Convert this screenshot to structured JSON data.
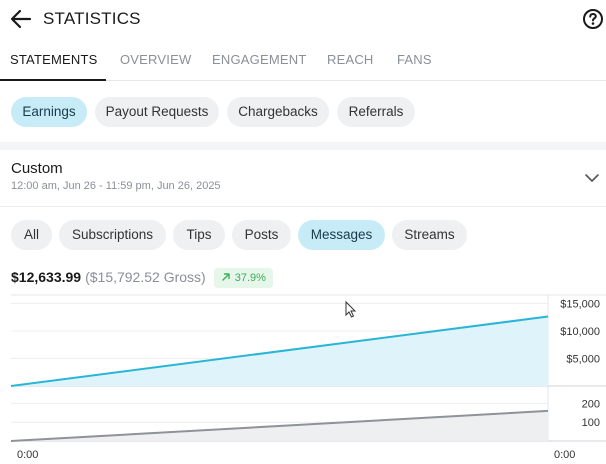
{
  "header": {
    "title": "STATISTICS",
    "back_icon": "arrow-left-icon",
    "help_icon": "question-circle-icon"
  },
  "tabs": [
    {
      "label": "STATEMENTS",
      "active": true
    },
    {
      "label": "OVERVIEW",
      "active": false
    },
    {
      "label": "ENGAGEMENT",
      "active": false
    },
    {
      "label": "REACH",
      "active": false
    },
    {
      "label": "FANS",
      "active": false
    }
  ],
  "statement_types": [
    {
      "label": "Earnings",
      "active": true
    },
    {
      "label": "Payout Requests",
      "active": false
    },
    {
      "label": "Chargebacks",
      "active": false
    },
    {
      "label": "Referrals",
      "active": false
    }
  ],
  "date_range": {
    "title": "Custom",
    "subtitle": "12:00 am, Jun 26 - 11:59 pm, Jun 26, 2025",
    "icon": "chevron-down-icon"
  },
  "filters": [
    {
      "label": "All",
      "active": false
    },
    {
      "label": "Subscriptions",
      "active": false
    },
    {
      "label": "Tips",
      "active": false
    },
    {
      "label": "Posts",
      "active": false
    },
    {
      "label": "Messages",
      "active": true
    },
    {
      "label": "Streams",
      "active": false
    }
  ],
  "summary": {
    "net": "$12,633.99",
    "gross": "($15,792.52 Gross)",
    "change": "37.9%",
    "change_icon": "arrow-up-right-icon"
  },
  "colors": {
    "accent": "#29b6d6",
    "accent_fill": "#dff3fb",
    "active_chip": "#c8ecf7",
    "positive": "#3fae5a",
    "count_line": "#8e9299"
  },
  "chart_data": [
    {
      "type": "area",
      "x": [
        "0:00",
        "0:00"
      ],
      "series": [
        {
          "values": [
            0,
            12634
          ]
        }
      ],
      "y_ticks": [
        "$15,000",
        "$10,000",
        "$5,000"
      ],
      "ylim": [
        0,
        16000
      ],
      "grid": true,
      "axis_position": "right"
    },
    {
      "type": "area",
      "x": [
        "0:00",
        "0:00"
      ],
      "series": [
        {
          "values": [
            0,
            160
          ]
        }
      ],
      "y_ticks": [
        "200",
        "100"
      ],
      "ylim": [
        0,
        250
      ],
      "grid": true,
      "axis_position": "right",
      "x_tick_labels": [
        "0:00",
        "0:00"
      ]
    }
  ]
}
